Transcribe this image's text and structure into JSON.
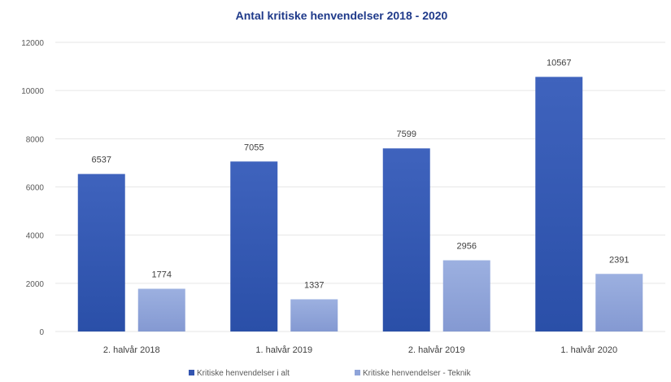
{
  "chart_data": {
    "type": "bar",
    "title": "Antal kritiske henvendelser 2018 - 2020",
    "xlabel": "",
    "ylabel": "",
    "ylim": [
      0,
      12000
    ],
    "yticks": [
      0,
      2000,
      4000,
      6000,
      8000,
      10000,
      12000
    ],
    "grid": true,
    "legend_position": "bottom",
    "categories": [
      "2. halvår 2018",
      "1. halvår 2019",
      "2. halvår 2019",
      "1. halvår 2020"
    ],
    "series": [
      {
        "name": "Kritiske henvendelser i alt",
        "values": [
          6537,
          7055,
          7599,
          10567
        ],
        "color": "#3355b0"
      },
      {
        "name": "Kritiske henvendelser - Teknik",
        "values": [
          1774,
          1337,
          2956,
          2391
        ],
        "color": "#8fa4d9"
      }
    ]
  }
}
